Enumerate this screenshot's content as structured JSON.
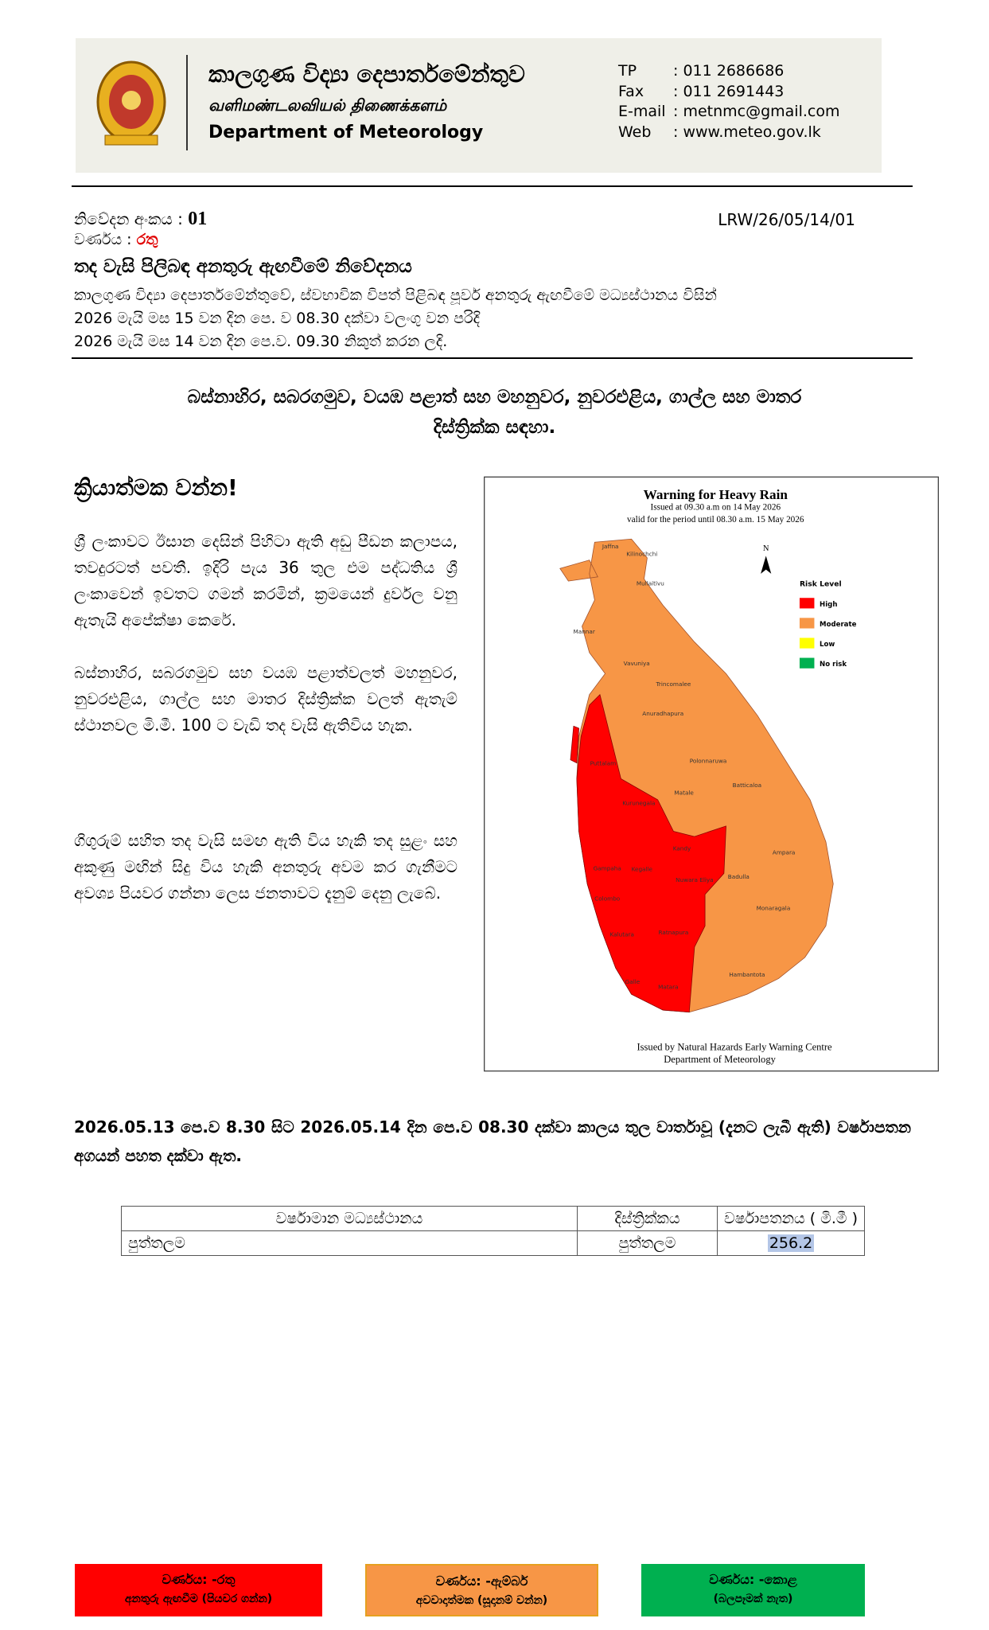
{
  "header": {
    "title_si": "කාලගුණ විද්‍යා දෙපාර්තමේන්තුව",
    "title_ta": "வளிமண்டலவியல் திணைக்களம்",
    "title_en": "Department of Meteorology",
    "contacts": [
      {
        "label": "TP",
        "value": ": 011 2686686"
      },
      {
        "label": "Fax",
        "value": ": 011 2691443"
      },
      {
        "label": "E-mail",
        "value": ": metnmc@gmail.com"
      },
      {
        "label": "Web",
        "value": ": www.meteo.gov.lk"
      }
    ]
  },
  "notice": {
    "number_label": "නිවේදන අංකය :",
    "number": "01",
    "reference": "LRW/26/05/14/01",
    "color_label": "වර්ණය :",
    "color_value": "රතු",
    "title": "තද වැසි පිලිබඳ අනතුරු ඇඟවීමේ නිවේදනය",
    "issuer": "කාලගුණ විද්‍යා දෙපාර්තමේන්තුවේ, ස්වභාවික විපත් පිළිබඳ  පූර්ව අනතුරු ඇඟවීමේ මධ්‍යස්ථානය විසින්",
    "validity": "2026 මැයි මස 15 වන දින පෙ. ව 08.30 දක්වා වලංගු වන පරිදි",
    "issued": "2026 මැයි මස 14 වන දින පෙ.ව. 09.30 නිකුත් කරන ලදි."
  },
  "heading": [
    "බස්නාහිර, සබරගමුව, වයඹ පළාත් සහ මහනුවර, නුවරඑළිය, ගාල්ල සහ මාතර",
    "දිස්ත්‍රික්ක සඳහා."
  ],
  "action": "ක්‍රියාත්මක වන්න!",
  "paragraphs": [
    "ශ්‍රී ලංකාවට ඊසාන දෙසින් පිහිටා ඇති අඩු පීඩන කලාපය, තවදුරටත් පවතී. ඉදිරි පැය 36 තුල එම පද්ධතිය ශ්‍රී ලංකාවෙන් ඉවතට ගමන් කරමින්, ක්‍රමයෙන් දුර්වල වනු ඇතැයි අපේක්ෂා කෙරේ.",
    "බස්නාහිර, සබරගමුව සහ වයඹ පළාත්වලත් මහනුවර, නුවරඑළිය, ගාල්ල සහ මාතර දිස්ත්‍රික්ක වලත් ඇතැම් ස්ථානවල මි.මී. 100 ට වැඩි තද වැසි ඇතිවිය හැක.",
    "ගිගුරුම් සහිත තද වැසි සමඟ ඇති විය හැකි තද සුළං සහ අකුණු මඟින් සිදු විය හැකි අනතුරු අවම කර ගැනීමට අවශ්‍ය පියවර ගන්නා ලෙස ජනතාවට දැනුම් දෙනු ලැබේ."
  ],
  "map": {
    "title": "Warning for Heavy Rain",
    "issued": "Issued at 09.30 a.m  on 14 May 2026",
    "valid": "valid for the period until 08.30 a.m. 15 May 2026",
    "north": "N",
    "legend_title": "Risk Level",
    "legend": [
      {
        "label": "High",
        "color": "#ff0000"
      },
      {
        "label": "Moderate",
        "color": "#f79646"
      },
      {
        "label": "Low",
        "color": "#ffff00"
      },
      {
        "label": "No risk",
        "color": "#00b050"
      }
    ],
    "districts": [
      "Jaffna",
      "Kilinochchi",
      "Mullaitivu",
      "Mannar",
      "Vavuniya",
      "Trincomalee",
      "Anuradhapura",
      "Puttalam",
      "Kurunegala",
      "Polonnaruwa",
      "Batticaloa",
      "Matale",
      "Kandy",
      "Ampara",
      "Gampaha",
      "Kegalle",
      "Nuwara Eliya",
      "Badulla",
      "Colombo",
      "Ratnapura",
      "Monaragala",
      "Kalutara",
      "Hambantota",
      "Galle",
      "Matara"
    ],
    "footer": [
      "Issued by Natural Hazards Early Warning Centre",
      "Department of Meteorology"
    ]
  },
  "rainfall": {
    "intro": "2026.05.13 පෙ.ව 8.30 සිට 2026.05.14  දින පෙ.ව 08.30 දක්වා කාලය තුල වාර්තාවූ (දැනට ලැබී ඇති) වර්ෂාපතන අගයන් පහත දක්වා ඇත.",
    "table": {
      "headers": [
        "වර්ෂාමාන මධ්‍යස්ථානය",
        "දිස්ත්‍රික්කය",
        "වර්ෂාපතනය ( මි.මී )"
      ],
      "rows": [
        [
          "පුත්තලම",
          "පුත්තලම",
          "256.2"
        ]
      ]
    }
  },
  "footer": [
    {
      "label": "වර්ණය: -රතු",
      "sublabel": "අනතුරු ඇඟවීම (පියවර ගන්න)",
      "color": "#ff0000"
    },
    {
      "label": "වර්ණය: -ඇම්බර්",
      "sublabel": "අවවාදාත්මක (සූදානම් වන්න)",
      "color": "#f79646"
    },
    {
      "label": "වර්ණය: -කොළ",
      "sublabel": "(බලපෑමක් නැත)",
      "color": "#00b050"
    }
  ]
}
